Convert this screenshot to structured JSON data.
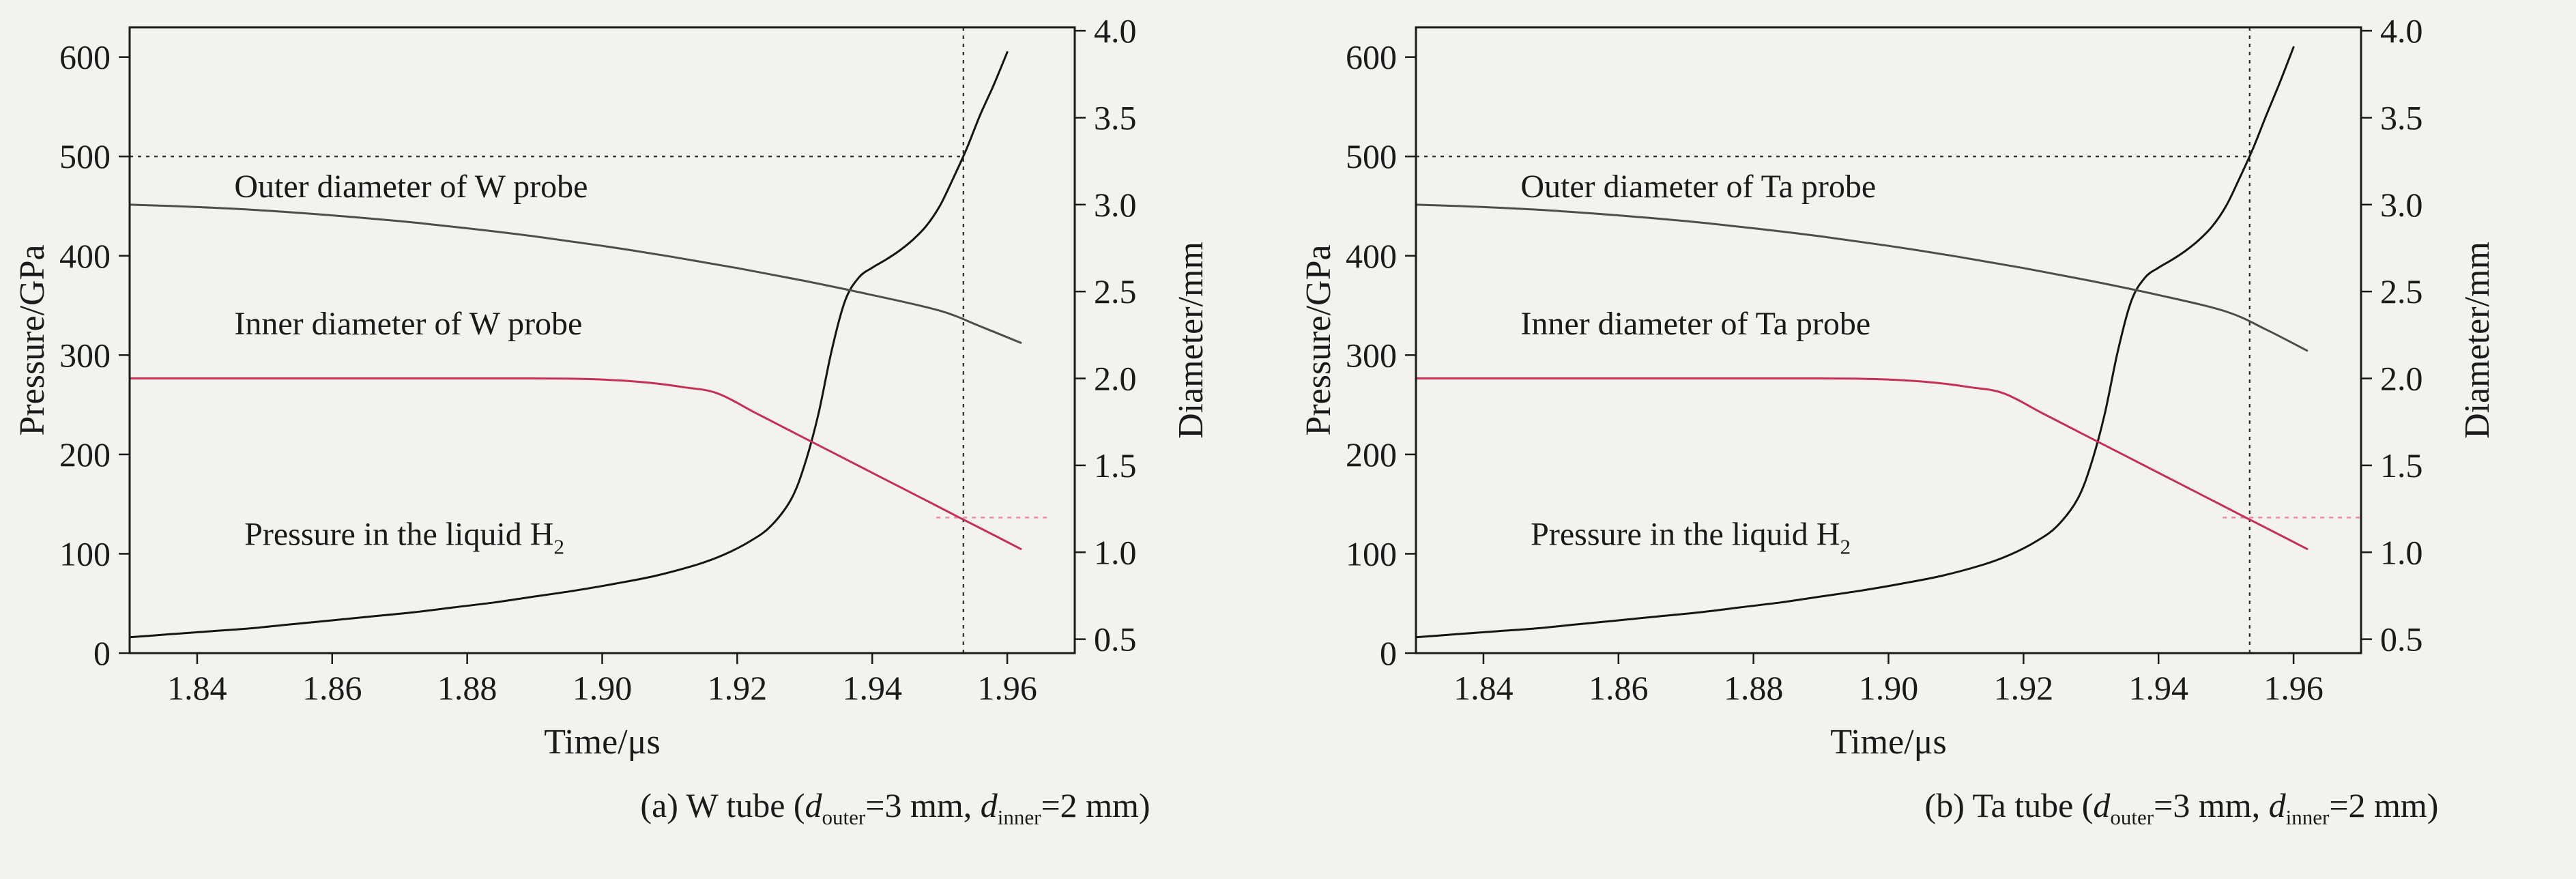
{
  "figure": {
    "background": "#f3f2ef",
    "axis_color": "#1a1a1a",
    "text_color": "#1a1a1a"
  },
  "chart_data": [
    {
      "type": "line",
      "panel": "a",
      "xlabel": "Time/μs",
      "ylabel_left": "Pressure/GPa",
      "ylabel_right": "Diameter/mm",
      "xlim": [
        1.83,
        1.97
      ],
      "ylim_left": [
        0,
        630
      ],
      "ylim_right": [
        0.42,
        4.02
      ],
      "grid": false,
      "legend": "none",
      "x_ticks": [
        {
          "v": 1.84,
          "label": "1.84"
        },
        {
          "v": 1.86,
          "label": "1.86"
        },
        {
          "v": 1.88,
          "label": "1.88"
        },
        {
          "v": 1.9,
          "label": "1.90"
        },
        {
          "v": 1.92,
          "label": "1.92"
        },
        {
          "v": 1.94,
          "label": "1.94"
        },
        {
          "v": 1.96,
          "label": "1.96"
        }
      ],
      "y_ticks_left": [
        {
          "v": 0,
          "label": "0"
        },
        {
          "v": 100,
          "label": "100"
        },
        {
          "v": 200,
          "label": "200"
        },
        {
          "v": 300,
          "label": "300"
        },
        {
          "v": 400,
          "label": "400"
        },
        {
          "v": 500,
          "label": "500"
        },
        {
          "v": 600,
          "label": "600"
        }
      ],
      "y_ticks_right": [
        {
          "v": 0.5,
          "label": "0.5"
        },
        {
          "v": 1.0,
          "label": "1.0"
        },
        {
          "v": 1.5,
          "label": "1.5"
        },
        {
          "v": 2.0,
          "label": "2.0"
        },
        {
          "v": 2.5,
          "label": "2.5"
        },
        {
          "v": 3.0,
          "label": "3.0"
        },
        {
          "v": 3.5,
          "label": "3.5"
        },
        {
          "v": 4.0,
          "label": "4.0"
        }
      ],
      "series": [
        {
          "name": "Pressure in the liquid H2",
          "axis": "left",
          "color": "#151515",
          "width": 3,
          "x": [
            1.83,
            1.836,
            1.842,
            1.848,
            1.854,
            1.86,
            1.866,
            1.872,
            1.878,
            1.884,
            1.89,
            1.896,
            1.902,
            1.908,
            1.914,
            1.918,
            1.922,
            1.925,
            1.928,
            1.93,
            1.932,
            1.934,
            1.936,
            1.938,
            1.94,
            1.942,
            1.944,
            1.946,
            1.948,
            1.95,
            1.952,
            1.954,
            1.956,
            1.958,
            1.96
          ],
          "y": [
            16,
            19,
            22,
            25,
            29,
            33,
            37,
            41,
            46,
            51,
            57,
            63,
            70,
            78,
            89,
            99,
            113,
            128,
            155,
            190,
            240,
            305,
            355,
            378,
            388,
            396,
            405,
            416,
            430,
            450,
            478,
            508,
            542,
            572,
            605
          ]
        },
        {
          "name": "Outer diameter of W probe",
          "axis": "right",
          "color": "#4d4d4d",
          "width": 3,
          "x": [
            1.83,
            1.84,
            1.85,
            1.86,
            1.87,
            1.88,
            1.89,
            1.9,
            1.91,
            1.92,
            1.93,
            1.94,
            1.95,
            1.956,
            1.962
          ],
          "y": [
            3.0,
            2.986,
            2.966,
            2.938,
            2.905,
            2.864,
            2.817,
            2.763,
            2.702,
            2.635,
            2.561,
            2.48,
            2.39,
            2.3,
            2.205
          ]
        },
        {
          "name": "Inner diameter of W probe",
          "axis": "right",
          "color": "#c53156",
          "width": 3,
          "x": [
            1.83,
            1.845,
            1.86,
            1.875,
            1.888,
            1.896,
            1.902,
            1.907,
            1.912,
            1.917,
            1.923,
            1.929,
            1.935,
            1.941,
            1.947,
            1.953,
            1.958,
            1.962
          ],
          "y": [
            2.0,
            2.0,
            2.0,
            2.0,
            2.0,
            1.998,
            1.99,
            1.975,
            1.95,
            1.915,
            1.796,
            1.676,
            1.557,
            1.437,
            1.318,
            1.198,
            1.099,
            1.019
          ]
        }
      ],
      "ref_lines": [
        {
          "kind": "h",
          "axis": "left",
          "value": 500,
          "x_from": 1.83,
          "x_to": 1.9535,
          "color": "#2b2b2b",
          "dash": "5 7",
          "width": 2.2
        },
        {
          "kind": "v",
          "x": 1.9535,
          "color": "#2b2b2b",
          "dash": "5 7",
          "width": 2.2
        },
        {
          "kind": "h",
          "axis": "right",
          "value": 1.2,
          "x_from": 1.9495,
          "x_to": 1.9665,
          "color": "#ea8fae",
          "dash": "6 7",
          "width": 2.6
        }
      ],
      "annotations": [
        {
          "x": 1.8455,
          "y": 470,
          "axis": "left",
          "parts": [
            {
              "t": "Outer diameter of W probe"
            }
          ]
        },
        {
          "x": 1.8455,
          "y": 332,
          "axis": "left",
          "parts": [
            {
              "t": "Inner diameter of W probe"
            }
          ]
        },
        {
          "x": 1.847,
          "y": 120,
          "axis": "left",
          "parts": [
            {
              "t": "Pressure in the liquid H"
            },
            {
              "t": "2",
              "sub": true
            }
          ]
        }
      ],
      "caption_parts": [
        {
          "t": "(a) W tube ("
        },
        {
          "t": "d",
          "italic": true
        },
        {
          "t": "outer",
          "sub": true
        },
        {
          "t": "=3 mm, "
        },
        {
          "t": "d",
          "italic": true
        },
        {
          "t": "inner",
          "sub": true
        },
        {
          "t": "=2 mm)"
        }
      ]
    },
    {
      "type": "line",
      "panel": "b",
      "xlabel": "Time/μs",
      "ylabel_left": "Pressure/GPa",
      "ylabel_right": "Diameter/mm",
      "xlim": [
        1.83,
        1.97
      ],
      "ylim_left": [
        0,
        630
      ],
      "ylim_right": [
        0.42,
        4.02
      ],
      "grid": false,
      "legend": "none",
      "x_ticks": [
        {
          "v": 1.84,
          "label": "1.84"
        },
        {
          "v": 1.86,
          "label": "1.86"
        },
        {
          "v": 1.88,
          "label": "1.88"
        },
        {
          "v": 1.9,
          "label": "1.90"
        },
        {
          "v": 1.92,
          "label": "1.92"
        },
        {
          "v": 1.94,
          "label": "1.94"
        },
        {
          "v": 1.96,
          "label": "1.96"
        }
      ],
      "y_ticks_left": [
        {
          "v": 0,
          "label": "0"
        },
        {
          "v": 100,
          "label": "100"
        },
        {
          "v": 200,
          "label": "200"
        },
        {
          "v": 300,
          "label": "300"
        },
        {
          "v": 400,
          "label": "400"
        },
        {
          "v": 500,
          "label": "500"
        },
        {
          "v": 600,
          "label": "600"
        }
      ],
      "y_ticks_right": [
        {
          "v": 0.5,
          "label": "0.5"
        },
        {
          "v": 1.0,
          "label": "1.0"
        },
        {
          "v": 1.5,
          "label": "1.5"
        },
        {
          "v": 2.0,
          "label": "2.0"
        },
        {
          "v": 2.5,
          "label": "2.5"
        },
        {
          "v": 3.0,
          "label": "3.0"
        },
        {
          "v": 3.5,
          "label": "3.5"
        },
        {
          "v": 4.0,
          "label": "4.0"
        }
      ],
      "series": [
        {
          "name": "Pressure in the liquid H2",
          "axis": "left",
          "color": "#151515",
          "width": 3,
          "x": [
            1.83,
            1.836,
            1.842,
            1.848,
            1.854,
            1.86,
            1.866,
            1.872,
            1.878,
            1.884,
            1.89,
            1.896,
            1.902,
            1.908,
            1.914,
            1.918,
            1.922,
            1.925,
            1.928,
            1.93,
            1.932,
            1.934,
            1.936,
            1.938,
            1.94,
            1.942,
            1.944,
            1.946,
            1.948,
            1.95,
            1.952,
            1.954,
            1.956,
            1.958,
            1.96
          ],
          "y": [
            16,
            19,
            22,
            25,
            29,
            33,
            37,
            41,
            46,
            51,
            57,
            63,
            70,
            78,
            89,
            99,
            113,
            128,
            155,
            190,
            240,
            305,
            355,
            378,
            388,
            396,
            405,
            416,
            430,
            450,
            478,
            508,
            542,
            575,
            610
          ]
        },
        {
          "name": "Outer diameter of Ta probe",
          "axis": "right",
          "color": "#4d4d4d",
          "width": 3,
          "x": [
            1.83,
            1.84,
            1.85,
            1.86,
            1.87,
            1.88,
            1.89,
            1.9,
            1.91,
            1.92,
            1.93,
            1.94,
            1.95,
            1.956,
            1.962
          ],
          "y": [
            3.0,
            2.986,
            2.966,
            2.938,
            2.905,
            2.864,
            2.817,
            2.763,
            2.702,
            2.635,
            2.561,
            2.48,
            2.385,
            2.28,
            2.16
          ]
        },
        {
          "name": "Inner diameter of Ta probe",
          "axis": "right",
          "color": "#c53156",
          "width": 3,
          "x": [
            1.83,
            1.845,
            1.86,
            1.875,
            1.888,
            1.896,
            1.902,
            1.907,
            1.912,
            1.917,
            1.923,
            1.929,
            1.935,
            1.941,
            1.947,
            1.953,
            1.958,
            1.962
          ],
          "y": [
            2.0,
            2.0,
            2.0,
            2.0,
            2.0,
            1.998,
            1.99,
            1.975,
            1.95,
            1.915,
            1.796,
            1.676,
            1.557,
            1.437,
            1.318,
            1.198,
            1.099,
            1.019
          ]
        }
      ],
      "ref_lines": [
        {
          "kind": "h",
          "axis": "left",
          "value": 500,
          "x_from": 1.83,
          "x_to": 1.9535,
          "color": "#2b2b2b",
          "dash": "5 7",
          "width": 2.2
        },
        {
          "kind": "v",
          "x": 1.9535,
          "color": "#2b2b2b",
          "dash": "5 7",
          "width": 2.2
        },
        {
          "kind": "h",
          "axis": "right",
          "value": 1.2,
          "x_from": 1.9495,
          "x_to": 1.97,
          "color": "#ea8fae",
          "dash": "6 7",
          "width": 2.6
        }
      ],
      "annotations": [
        {
          "x": 1.8455,
          "y": 470,
          "axis": "left",
          "parts": [
            {
              "t": "Outer diameter of Ta probe"
            }
          ]
        },
        {
          "x": 1.8455,
          "y": 332,
          "axis": "left",
          "parts": [
            {
              "t": "Inner diameter of Ta probe"
            }
          ]
        },
        {
          "x": 1.847,
          "y": 120,
          "axis": "left",
          "parts": [
            {
              "t": "Pressure in the liquid H"
            },
            {
              "t": "2",
              "sub": true
            }
          ]
        }
      ],
      "caption_parts": [
        {
          "t": "(b) Ta tube ("
        },
        {
          "t": "d",
          "italic": true
        },
        {
          "t": "outer",
          "sub": true
        },
        {
          "t": "=3 mm, "
        },
        {
          "t": "d",
          "italic": true
        },
        {
          "t": "inner",
          "sub": true
        },
        {
          "t": "=2 mm)"
        }
      ]
    }
  ]
}
